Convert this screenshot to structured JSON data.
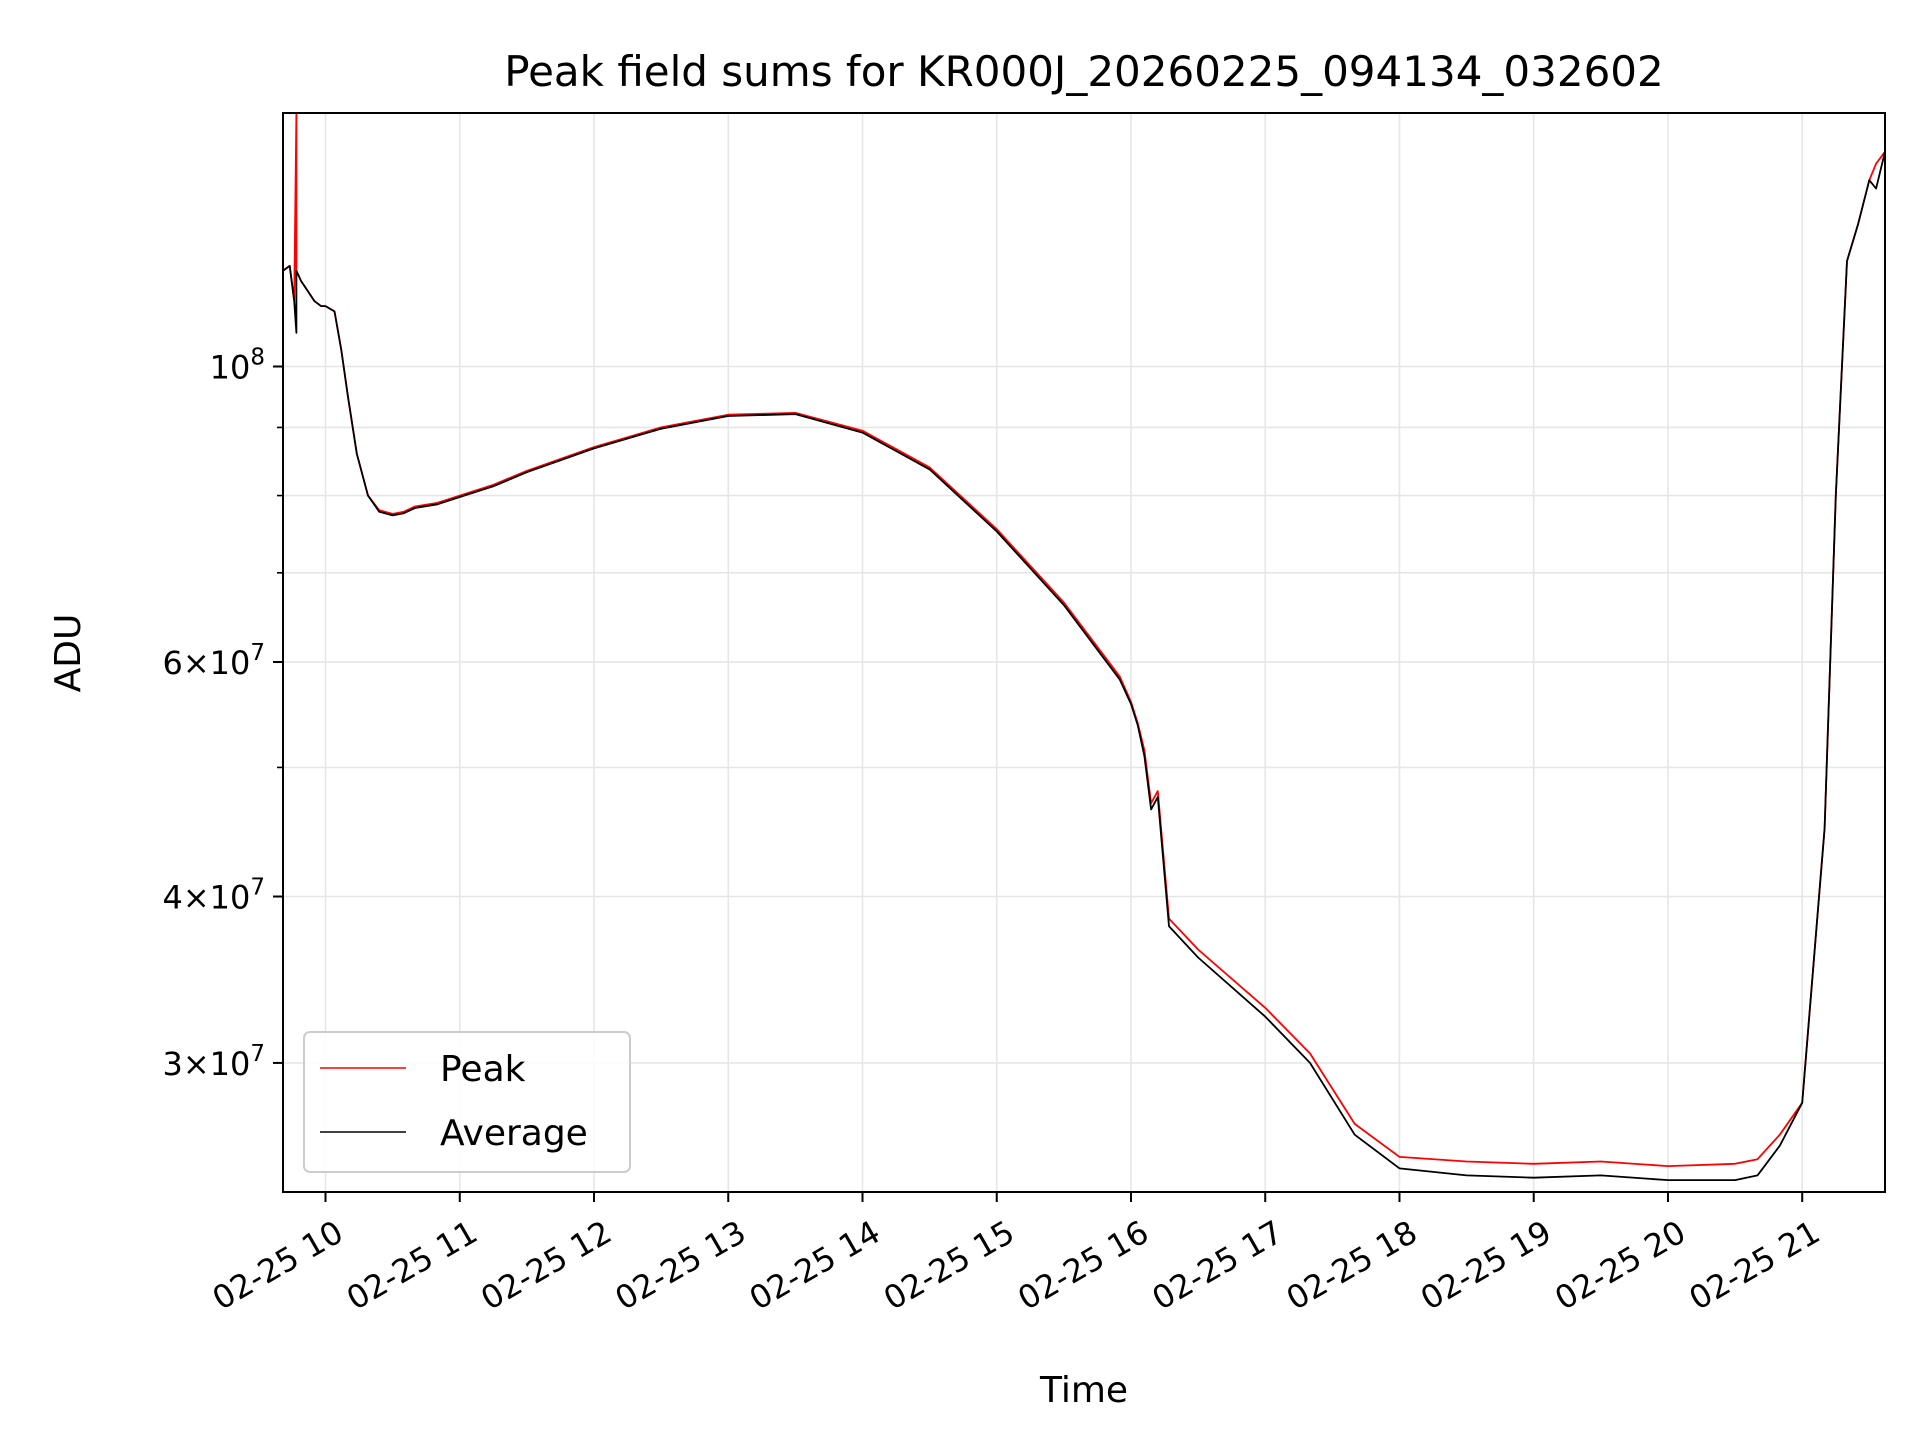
{
  "chart_data": {
    "type": "line",
    "title": "Peak field sums for KR000J_20260225_094134_032602",
    "xlabel": "Time",
    "ylabel": "ADU",
    "y_scale": "log",
    "x_range": [
      "2026-02-25 09:41",
      "2026-02-25 21:37"
    ],
    "ylim": [
      24000000,
      155000000
    ],
    "x_tick_labels": [
      "02-25 10",
      "02-25 11",
      "02-25 12",
      "02-25 13",
      "02-25 14",
      "02-25 15",
      "02-25 16",
      "02-25 17",
      "02-25 18",
      "02-25 19",
      "02-25 20",
      "02-25 21"
    ],
    "y_major_ticks": [
      {
        "value": 100000000,
        "mantissa": "",
        "base": "10",
        "exp": "8"
      },
      {
        "value": 60000000,
        "mantissa": "6×",
        "base": "10",
        "exp": "7"
      },
      {
        "value": 40000000,
        "mantissa": "4×",
        "base": "10",
        "exp": "7"
      },
      {
        "value": 30000000,
        "mantissa": "3×",
        "base": "10",
        "exp": "7"
      }
    ],
    "y_minor_ticks": [
      90000000,
      80000000,
      70000000,
      50000000
    ],
    "grid": true,
    "legend": "lower-left",
    "series": [
      {
        "name": "Peak",
        "color": "#ff0000",
        "x": [
          "2026-02-25 09:41",
          "2026-02-25 09:44",
          "2026-02-25 09:46",
          "2026-02-25 09:47",
          "2026-02-25 09:47",
          "2026-02-25 09:48",
          "2026-02-25 09:49",
          "2026-02-25 09:52",
          "2026-02-25 09:55",
          "2026-02-25 09:58",
          "2026-02-25 10:00",
          "2026-02-25 10:04",
          "2026-02-25 10:07",
          "2026-02-25 10:10",
          "2026-02-25 10:14",
          "2026-02-25 10:19",
          "2026-02-25 10:24",
          "2026-02-25 10:30",
          "2026-02-25 10:35",
          "2026-02-25 10:40",
          "2026-02-25 10:50",
          "2026-02-25 11:00",
          "2026-02-25 11:15",
          "2026-02-25 11:30",
          "2026-02-25 12:00",
          "2026-02-25 12:30",
          "2026-02-25 13:00",
          "2026-02-25 13:30",
          "2026-02-25 14:00",
          "2026-02-25 14:30",
          "2026-02-25 15:00",
          "2026-02-25 15:30",
          "2026-02-25 15:55",
          "2026-02-25 16:00",
          "2026-02-25 16:03",
          "2026-02-25 16:06",
          "2026-02-25 16:09",
          "2026-02-25 16:12",
          "2026-02-25 16:17",
          "2026-02-25 16:30",
          "2026-02-25 17:00",
          "2026-02-25 17:20",
          "2026-02-25 17:40",
          "2026-02-25 18:00",
          "2026-02-25 18:30",
          "2026-02-25 19:00",
          "2026-02-25 19:30",
          "2026-02-25 20:00",
          "2026-02-25 20:30",
          "2026-02-25 20:40",
          "2026-02-25 20:50",
          "2026-02-25 21:00",
          "2026-02-25 21:10",
          "2026-02-25 21:15",
          "2026-02-25 21:20",
          "2026-02-25 21:25",
          "2026-02-25 21:30",
          "2026-02-25 21:33",
          "2026-02-25 21:37"
        ],
        "y": [
          118000000,
          119000000,
          112000000,
          155000000,
          118000000,
          117000000,
          116000000,
          114000000,
          112000000,
          111000000,
          111000000,
          110000000,
          103000000,
          95000000,
          86000000,
          80000000,
          78000000,
          77500000,
          77800000,
          78500000,
          79000000,
          80000000,
          81500000,
          83500000,
          87000000,
          90000000,
          92000000,
          92300000,
          89500000,
          84000000,
          75500000,
          66500000,
          58500000,
          56000000,
          54000000,
          51500000,
          47000000,
          48000000,
          38500000,
          36500000,
          33000000,
          30500000,
          27000000,
          25500000,
          25300000,
          25200000,
          25300000,
          25100000,
          25200000,
          25400000,
          26500000,
          28000000,
          45000000,
          80000000,
          120000000,
          128000000,
          138000000,
          142000000,
          145000000
        ]
      },
      {
        "name": "Average",
        "color": "#000000",
        "x": [
          "2026-02-25 09:41",
          "2026-02-25 09:44",
          "2026-02-25 09:46",
          "2026-02-25 09:47",
          "2026-02-25 09:47",
          "2026-02-25 09:48",
          "2026-02-25 09:49",
          "2026-02-25 09:52",
          "2026-02-25 09:55",
          "2026-02-25 09:58",
          "2026-02-25 10:00",
          "2026-02-25 10:04",
          "2026-02-25 10:07",
          "2026-02-25 10:10",
          "2026-02-25 10:14",
          "2026-02-25 10:19",
          "2026-02-25 10:24",
          "2026-02-25 10:30",
          "2026-02-25 10:35",
          "2026-02-25 10:40",
          "2026-02-25 10:50",
          "2026-02-25 11:00",
          "2026-02-25 11:15",
          "2026-02-25 11:30",
          "2026-02-25 12:00",
          "2026-02-25 12:30",
          "2026-02-25 13:00",
          "2026-02-25 13:30",
          "2026-02-25 14:00",
          "2026-02-25 14:30",
          "2026-02-25 15:00",
          "2026-02-25 15:30",
          "2026-02-25 15:55",
          "2026-02-25 16:00",
          "2026-02-25 16:03",
          "2026-02-25 16:06",
          "2026-02-25 16:09",
          "2026-02-25 16:12",
          "2026-02-25 16:17",
          "2026-02-25 16:30",
          "2026-02-25 17:00",
          "2026-02-25 17:20",
          "2026-02-25 17:40",
          "2026-02-25 18:00",
          "2026-02-25 18:30",
          "2026-02-25 19:00",
          "2026-02-25 19:30",
          "2026-02-25 20:00",
          "2026-02-25 20:30",
          "2026-02-25 20:40",
          "2026-02-25 20:50",
          "2026-02-25 21:00",
          "2026-02-25 21:10",
          "2026-02-25 21:15",
          "2026-02-25 21:20",
          "2026-02-25 21:25",
          "2026-02-25 21:30",
          "2026-02-25 21:33",
          "2026-02-25 21:37"
        ],
        "y": [
          118000000,
          119000000,
          112000000,
          106000000,
          118000000,
          117000000,
          116000000,
          114000000,
          112000000,
          111000000,
          111000000,
          110000000,
          103000000,
          95000000,
          86000000,
          80000000,
          77800000,
          77300000,
          77600000,
          78300000,
          78800000,
          79800000,
          81300000,
          83300000,
          86800000,
          89800000,
          91800000,
          92100000,
          89200000,
          83700000,
          75200000,
          66200000,
          58200000,
          55800000,
          53800000,
          51000000,
          46500000,
          47500000,
          38000000,
          36000000,
          32500000,
          30000000,
          26500000,
          25000000,
          24700000,
          24600000,
          24700000,
          24500000,
          24500000,
          24700000,
          26000000,
          28000000,
          45000000,
          80000000,
          120000000,
          128000000,
          138000000,
          136000000,
          145000000
        ]
      }
    ]
  }
}
